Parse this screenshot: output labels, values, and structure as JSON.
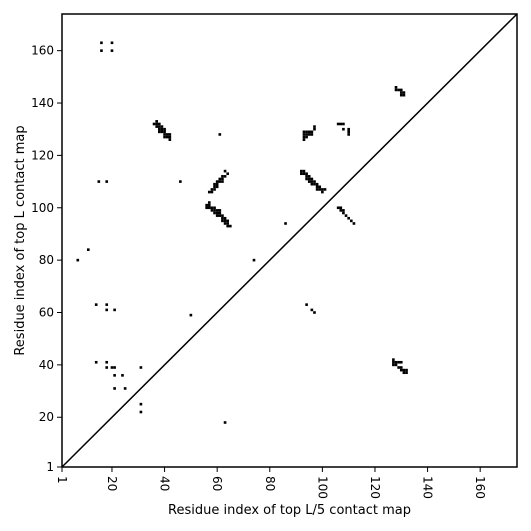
{
  "chart_data": {
    "type": "scatter",
    "xlabel": "Residue index of top L/5 contact map",
    "ylabel": "Residue index of top L contact map",
    "xlim": [
      1,
      174
    ],
    "ylim": [
      1,
      174
    ],
    "xticks": [
      1,
      20,
      40,
      60,
      80,
      100,
      120,
      140,
      160
    ],
    "yticks": [
      1,
      20,
      40,
      60,
      80,
      100,
      120,
      140,
      160
    ],
    "diagonal": true,
    "grid": false,
    "marker_color": "#000000",
    "points": [
      [
        16,
        163
      ],
      [
        20,
        163
      ],
      [
        16,
        160
      ],
      [
        20,
        160
      ],
      [
        15,
        110
      ],
      [
        18,
        110
      ],
      [
        46,
        110
      ],
      [
        11,
        84
      ],
      [
        7,
        80
      ],
      [
        74,
        80
      ],
      [
        14,
        63
      ],
      [
        18,
        63
      ],
      [
        18,
        61
      ],
      [
        21,
        61
      ],
      [
        50,
        59
      ],
      [
        14,
        41
      ],
      [
        18,
        41
      ],
      [
        18,
        39
      ],
      [
        20,
        39
      ],
      [
        21,
        39
      ],
      [
        31,
        39
      ],
      [
        21,
        36
      ],
      [
        24,
        36
      ],
      [
        21,
        31
      ],
      [
        25,
        31
      ],
      [
        31,
        25
      ],
      [
        31,
        22
      ],
      [
        63,
        18
      ],
      [
        36,
        132
      ],
      [
        37,
        133
      ],
      [
        37,
        132
      ],
      [
        38,
        132
      ],
      [
        37,
        131
      ],
      [
        38,
        131
      ],
      [
        39,
        131
      ],
      [
        38,
        130
      ],
      [
        39,
        130
      ],
      [
        40,
        130
      ],
      [
        38,
        129
      ],
      [
        39,
        129
      ],
      [
        40,
        129
      ],
      [
        40,
        128
      ],
      [
        41,
        128
      ],
      [
        42,
        128
      ],
      [
        40,
        127
      ],
      [
        41,
        127
      ],
      [
        42,
        127
      ],
      [
        42,
        126
      ],
      [
        61,
        128
      ],
      [
        63,
        114
      ],
      [
        64,
        113
      ],
      [
        62,
        112
      ],
      [
        63,
        112
      ],
      [
        61,
        111
      ],
      [
        62,
        111
      ],
      [
        60,
        110
      ],
      [
        61,
        110
      ],
      [
        62,
        110
      ],
      [
        59,
        109
      ],
      [
        60,
        109
      ],
      [
        59,
        108
      ],
      [
        60,
        108
      ],
      [
        58,
        107
      ],
      [
        59,
        107
      ],
      [
        57,
        106
      ],
      [
        58,
        106
      ],
      [
        57,
        102
      ],
      [
        56,
        101
      ],
      [
        57,
        101
      ],
      [
        56,
        100
      ],
      [
        57,
        100
      ],
      [
        58,
        100
      ],
      [
        59,
        100
      ],
      [
        58,
        99
      ],
      [
        59,
        99
      ],
      [
        60,
        99
      ],
      [
        61,
        99
      ],
      [
        59,
        98
      ],
      [
        60,
        98
      ],
      [
        61,
        98
      ],
      [
        60,
        97
      ],
      [
        61,
        97
      ],
      [
        62,
        97
      ],
      [
        62,
        96
      ],
      [
        63,
        96
      ],
      [
        62,
        95
      ],
      [
        63,
        95
      ],
      [
        64,
        95
      ],
      [
        63,
        94
      ],
      [
        64,
        94
      ],
      [
        64,
        93
      ],
      [
        65,
        93
      ],
      [
        86,
        94
      ],
      [
        93,
        129
      ],
      [
        94,
        129
      ],
      [
        95,
        129
      ],
      [
        96,
        129
      ],
      [
        93,
        128
      ],
      [
        94,
        128
      ],
      [
        95,
        128
      ],
      [
        96,
        128
      ],
      [
        93,
        127
      ],
      [
        94,
        127
      ],
      [
        93,
        126
      ],
      [
        97,
        131
      ],
      [
        97,
        130
      ],
      [
        92,
        114
      ],
      [
        93,
        114
      ],
      [
        92,
        113
      ],
      [
        93,
        113
      ],
      [
        94,
        113
      ],
      [
        94,
        112
      ],
      [
        95,
        112
      ],
      [
        94,
        111
      ],
      [
        95,
        111
      ],
      [
        96,
        111
      ],
      [
        95,
        110
      ],
      [
        96,
        110
      ],
      [
        97,
        110
      ],
      [
        96,
        109
      ],
      [
        97,
        109
      ],
      [
        98,
        109
      ],
      [
        98,
        108
      ],
      [
        99,
        108
      ],
      [
        98,
        107
      ],
      [
        99,
        107
      ],
      [
        100,
        107
      ],
      [
        101,
        107
      ],
      [
        100,
        106
      ],
      [
        94,
        63
      ],
      [
        96,
        61
      ],
      [
        97,
        60
      ],
      [
        106,
        132
      ],
      [
        107,
        132
      ],
      [
        108,
        132
      ],
      [
        108,
        130
      ],
      [
        110,
        130
      ],
      [
        110,
        129
      ],
      [
        110,
        128
      ],
      [
        106,
        100
      ],
      [
        107,
        100
      ],
      [
        107,
        99
      ],
      [
        108,
        99
      ],
      [
        108,
        98
      ],
      [
        109,
        97
      ],
      [
        110,
        96
      ],
      [
        111,
        95
      ],
      [
        112,
        94
      ],
      [
        128,
        146
      ],
      [
        128,
        145
      ],
      [
        129,
        145
      ],
      [
        130,
        145
      ],
      [
        130,
        144
      ],
      [
        131,
        144
      ],
      [
        130,
        143
      ],
      [
        131,
        143
      ],
      [
        127,
        42
      ],
      [
        127,
        41
      ],
      [
        128,
        41
      ],
      [
        129,
        41
      ],
      [
        130,
        41
      ],
      [
        127,
        40
      ],
      [
        128,
        40
      ],
      [
        129,
        39
      ],
      [
        130,
        39
      ],
      [
        130,
        38
      ],
      [
        131,
        38
      ],
      [
        131,
        37
      ],
      [
        132,
        37
      ],
      [
        132,
        38
      ]
    ]
  }
}
